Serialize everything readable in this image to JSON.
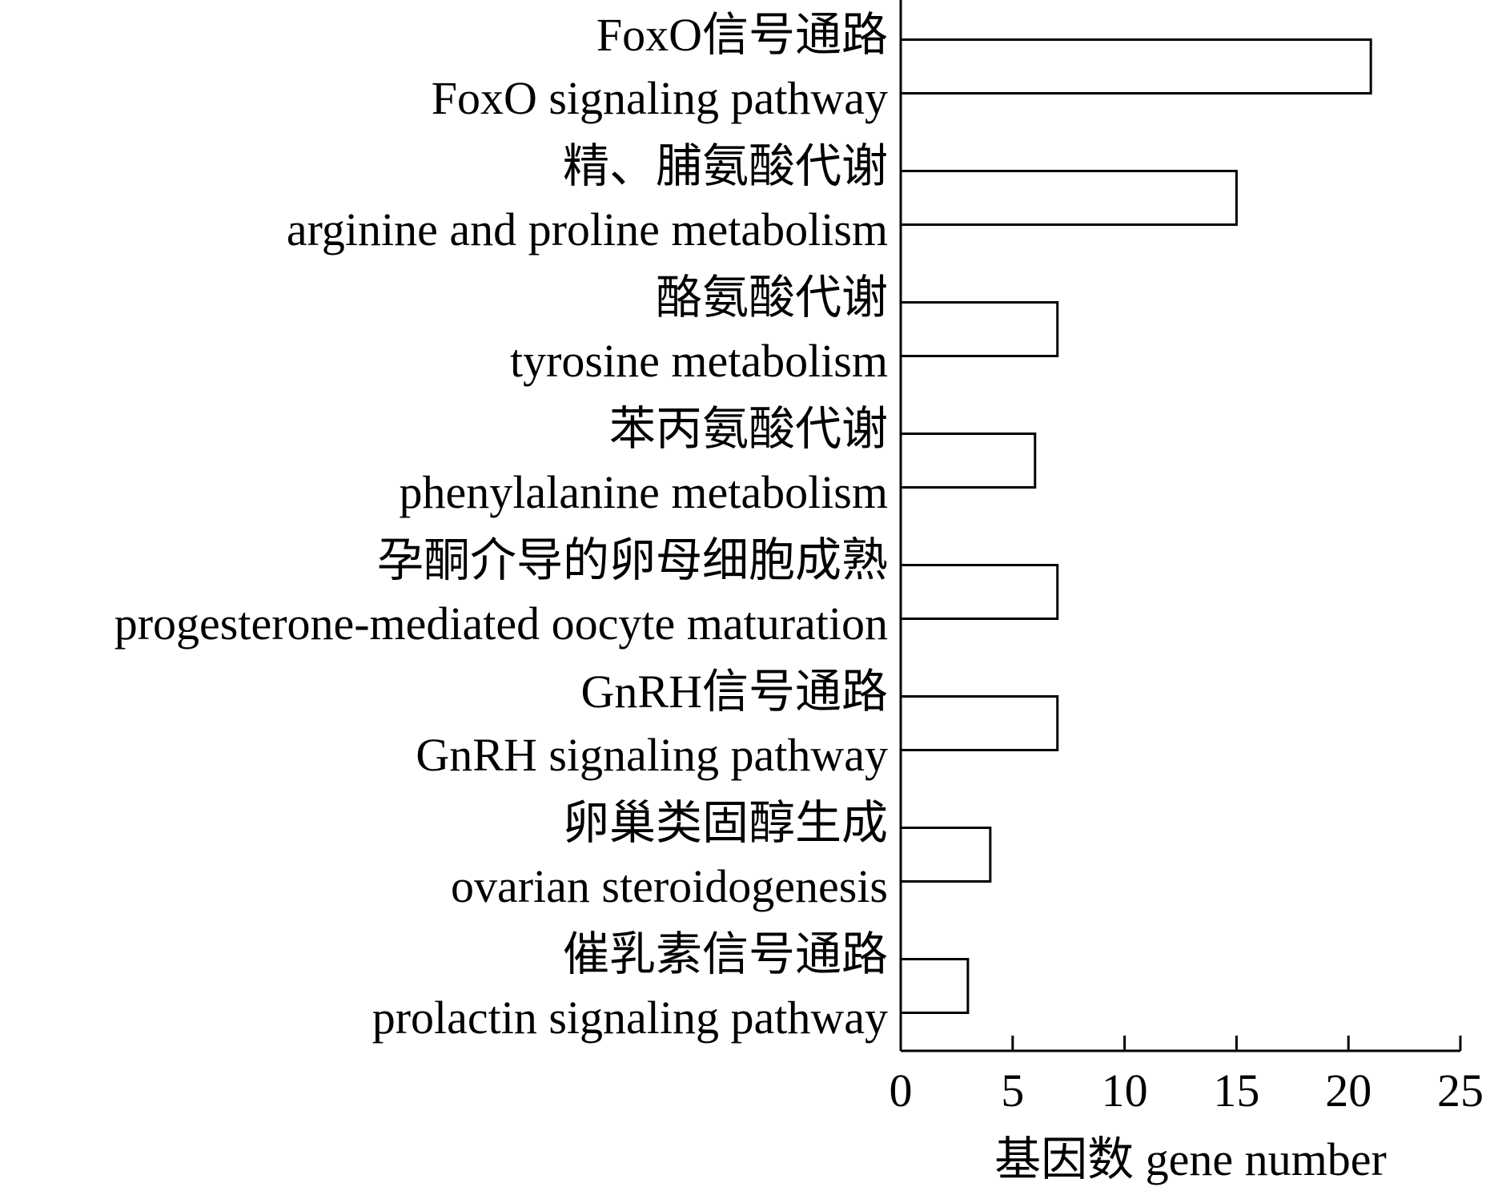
{
  "chart_data": {
    "type": "bar",
    "orientation": "horizontal",
    "categories": [
      {
        "zh": "FoxO信号通路",
        "en": "FoxO signaling pathway"
      },
      {
        "zh": "精、脯氨酸代谢",
        "en": "arginine and proline metabolism"
      },
      {
        "zh": "酪氨酸代谢",
        "en": "tyrosine metabolism"
      },
      {
        "zh": "苯丙氨酸代谢",
        "en": "phenylalanine metabolism"
      },
      {
        "zh": "孕酮介导的卵母细胞成熟",
        "en": "progesterone-mediated oocyte maturation"
      },
      {
        "zh": "GnRH信号通路",
        "en": "GnRH signaling pathway"
      },
      {
        "zh": "卵巢类固醇生成",
        "en": "ovarian steroidogenesis"
      },
      {
        "zh": "催乳素信号通路",
        "en": "prolactin signaling pathway"
      }
    ],
    "values": [
      21,
      15,
      7,
      6,
      7,
      7,
      4,
      3
    ],
    "xlabel": "基因数 gene number",
    "ylabel": "",
    "xlim": [
      0,
      25
    ],
    "xticks": [
      "0",
      "5",
      "10",
      "15",
      "20",
      "25"
    ],
    "grid": false,
    "legend": false,
    "bar_fill": "#ffffff",
    "bar_stroke": "#000000"
  }
}
